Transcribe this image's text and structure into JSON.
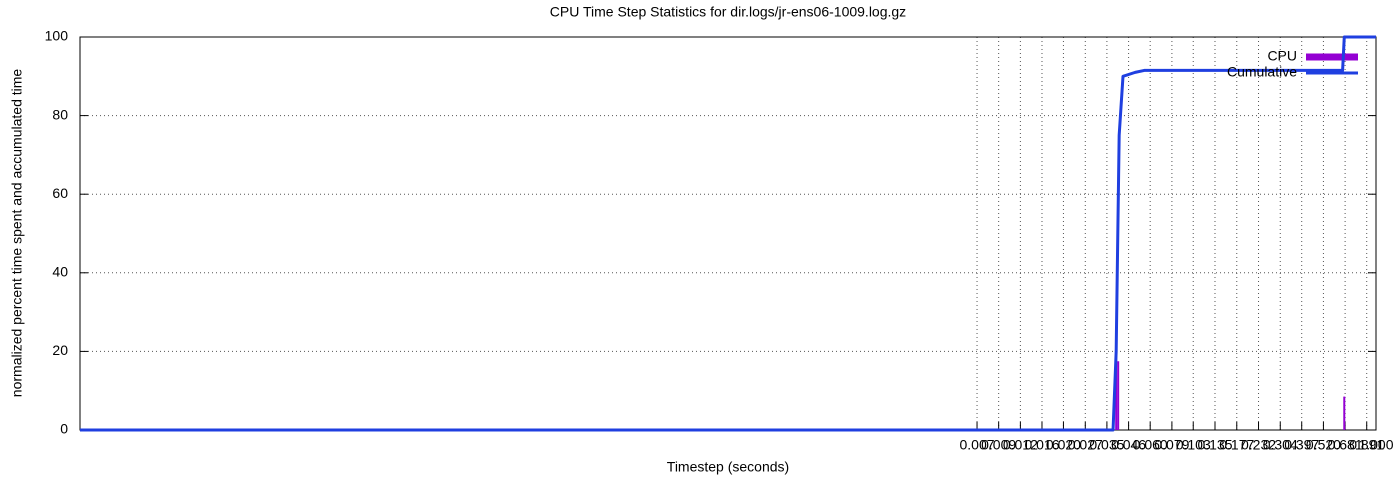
{
  "chart_data": {
    "type": "line",
    "title": "CPU Time Step Statistics for dir.logs/jr-ens06-1009.log.gz",
    "x_label": "Timestep (seconds)",
    "y_label": "normalized percent time spent and accumulated time",
    "log_x": true,
    "grid": true,
    "legend": "top right",
    "xlim": [
      1e-07,
      1
    ],
    "xticks": [
      {
        "value": 0.007,
        "label": "0.007"
      },
      {
        "value": 0.00916,
        "label": "0.009"
      },
      {
        "value": 0.012,
        "label": "0.012"
      },
      {
        "value": 0.0157,
        "label": "0.016"
      },
      {
        "value": 0.0205,
        "label": "0.020"
      },
      {
        "value": 0.0269,
        "label": "0.027"
      },
      {
        "value": 0.0352,
        "label": "0.035"
      },
      {
        "value": 0.0461,
        "label": "0.046"
      },
      {
        "value": 0.0603,
        "label": "0.060"
      },
      {
        "value": 0.079,
        "label": "0.079"
      },
      {
        "value": 0.103,
        "label": "0.103"
      },
      {
        "value": 0.135,
        "label": "0.135"
      },
      {
        "value": 0.177,
        "label": "0.177"
      },
      {
        "value": 0.232,
        "label": "0.232"
      },
      {
        "value": 0.304,
        "label": "0.304"
      },
      {
        "value": 0.397,
        "label": "0.397"
      },
      {
        "value": 0.52,
        "label": "0.520"
      },
      {
        "value": 0.681,
        "label": "0.681"
      },
      {
        "value": 0.891,
        "label": "0.891"
      },
      {
        "value": 1,
        "label": "1.000"
      }
    ],
    "ylim": [
      0,
      100
    ],
    "yticks": [
      0,
      20,
      40,
      60,
      80,
      100
    ],
    "series": [
      {
        "name": "CPU",
        "style": "impulses",
        "color": "#9400d3",
        "x": [
          0.0395,
          0.0405,
          0.674
        ],
        "values": [
          25,
          17.5,
          8.5
        ]
      },
      {
        "name": "Cumulative",
        "style": "line",
        "color": "#1f3fe0",
        "x": [
          1e-07,
          0.038,
          0.0395,
          0.041,
          0.043,
          0.05,
          0.056,
          0.65,
          0.66,
          0.674,
          1
        ],
        "values": [
          0,
          0,
          20,
          75,
          90,
          91,
          91.5,
          91.5,
          91.5,
          100,
          100
        ]
      }
    ]
  }
}
